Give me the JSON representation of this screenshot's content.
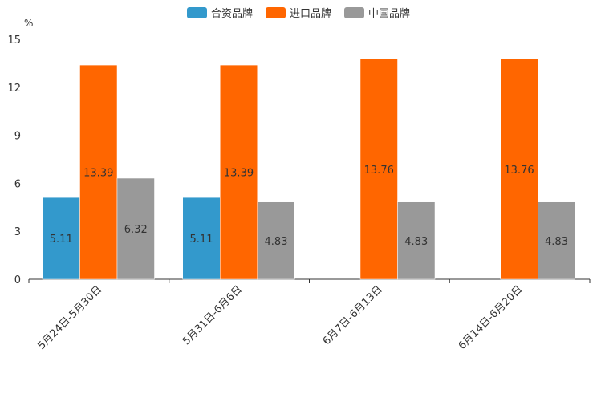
{
  "chart_data": {
    "type": "bar",
    "unit": "%",
    "categories": [
      "5月24日-5月30日",
      "5月31日-6月6日",
      "6月7日-6月13日",
      "6月14日-6月20日"
    ],
    "series": [
      {
        "name": "合资品牌",
        "color": "#3399cc",
        "values": [
          5.11,
          5.11,
          null,
          null
        ]
      },
      {
        "name": "进口品牌",
        "color": "#ff6600",
        "values": [
          13.39,
          13.39,
          13.76,
          13.76
        ]
      },
      {
        "name": "中国品牌",
        "color": "#999999",
        "values": [
          6.32,
          4.83,
          4.83,
          4.83
        ]
      }
    ],
    "ylim": [
      0,
      15
    ],
    "yticks": [
      "0",
      "3",
      "6",
      "9",
      "12",
      "15"
    ],
    "legend_position": "top-center",
    "grid": false
  }
}
